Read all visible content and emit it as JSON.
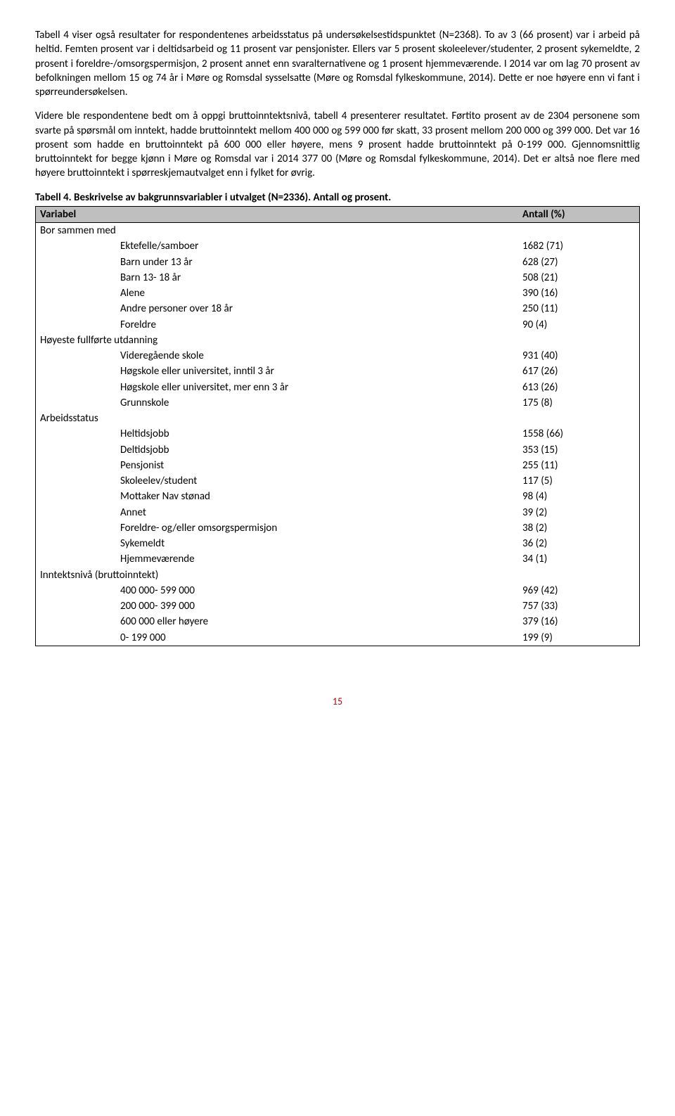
{
  "paragraphs": {
    "p1": "Tabell 4 viser også resultater for respondentenes arbeidsstatus på undersøkelsestidspunktet (N=2368). To av 3 (66 prosent) var i arbeid på heltid. Femten prosent var i deltidsarbeid og 11 prosent var pensjonister. Ellers var 5 prosent skoleelever/studenter, 2 prosent sykemeldte, 2 prosent i foreldre-/omsorgspermisjon, 2 prosent annet enn svaralternativene og 1 prosent hjemmeværende. I 2014 var om lag 70 prosent av befolkningen mellom 15 og 74 år i Møre og Romsdal sysselsatte (Møre og Romsdal fylkeskommune, 2014). Dette er noe høyere enn vi fant i spørreundersøkelsen.",
    "p2": "Videre ble respondentene bedt om å oppgi bruttoinntektsnivå, tabell 4 presenterer resultatet. Førtito prosent av de 2304 personene som svarte på spørsmål om inntekt, hadde bruttoinntekt mellom 400 000 og 599 000 før skatt, 33 prosent mellom 200 000 og 399 000. Det var 16 prosent som hadde en bruttoinntekt på 600 000 eller høyere, mens 9 prosent hadde bruttoinntekt på 0-199 000. Gjennomsnittlig bruttoinntekt for begge kjønn i Møre og Romsdal var i 2014 377 00 (Møre og Romsdal fylkeskommune, 2014). Det er altså noe flere med høyere bruttoinntekt i spørreskjemautvalget enn i fylket for øvrig."
  },
  "table": {
    "title": "Tabell 4. Beskrivelse av bakgrunnsvariabler i utvalget (N=2336). Antall og prosent.",
    "header_left": "Variabel",
    "header_right": "Antall (%)",
    "sections": [
      {
        "label": "Bor sammen med",
        "rows": [
          {
            "label": "Ektefelle/samboer",
            "value": "1682 (71)"
          },
          {
            "label": "Barn under 13 år",
            "value": "628 (27)"
          },
          {
            "label": "Barn 13- 18 år",
            "value": "508 (21)"
          },
          {
            "label": "Alene",
            "value": "390 (16)"
          },
          {
            "label": "Andre personer over 18 år",
            "value": "250 (11)"
          },
          {
            "label": "Foreldre",
            "value": "90 (4)"
          }
        ]
      },
      {
        "label": "Høyeste fullførte utdanning",
        "rows": [
          {
            "label": "Videregående skole",
            "value": "931 (40)"
          },
          {
            "label": "Høgskole eller universitet, inntil 3 år",
            "value": "617 (26)"
          },
          {
            "label": "Høgskole eller universitet, mer enn 3 år",
            "value": "613 (26)"
          },
          {
            "label": "Grunnskole",
            "value": "175 (8)"
          }
        ]
      },
      {
        "label": "Arbeidsstatus",
        "rows": [
          {
            "label": "Heltidsjobb",
            "value": "1558 (66)"
          },
          {
            "label": "Deltidsjobb",
            "value": "353 (15)"
          },
          {
            "label": "Pensjonist",
            "value": "255 (11)"
          },
          {
            "label": "Skoleelev/student",
            "value": "117 (5)"
          },
          {
            "label": "Mottaker Nav stønad",
            "value": "98 (4)"
          },
          {
            "label": "Annet",
            "value": "39 (2)"
          },
          {
            "label": "Foreldre- og/eller omsorgspermisjon",
            "value": "38 (2)"
          },
          {
            "label": "Sykemeldt",
            "value": "36 (2)"
          },
          {
            "label": "Hjemmeværende",
            "value": "34 (1)"
          }
        ]
      },
      {
        "label": "Inntektsnivå (bruttoinntekt)",
        "rows": [
          {
            "label": "400 000- 599 000",
            "value": "969 (42)"
          },
          {
            "label": "200 000- 399 000",
            "value": "757 (33)"
          },
          {
            "label": "600 000 eller høyere",
            "value": "379 (16)"
          },
          {
            "label": "0- 199 000",
            "value": "199 (9)"
          }
        ]
      }
    ]
  },
  "page_number": "15"
}
